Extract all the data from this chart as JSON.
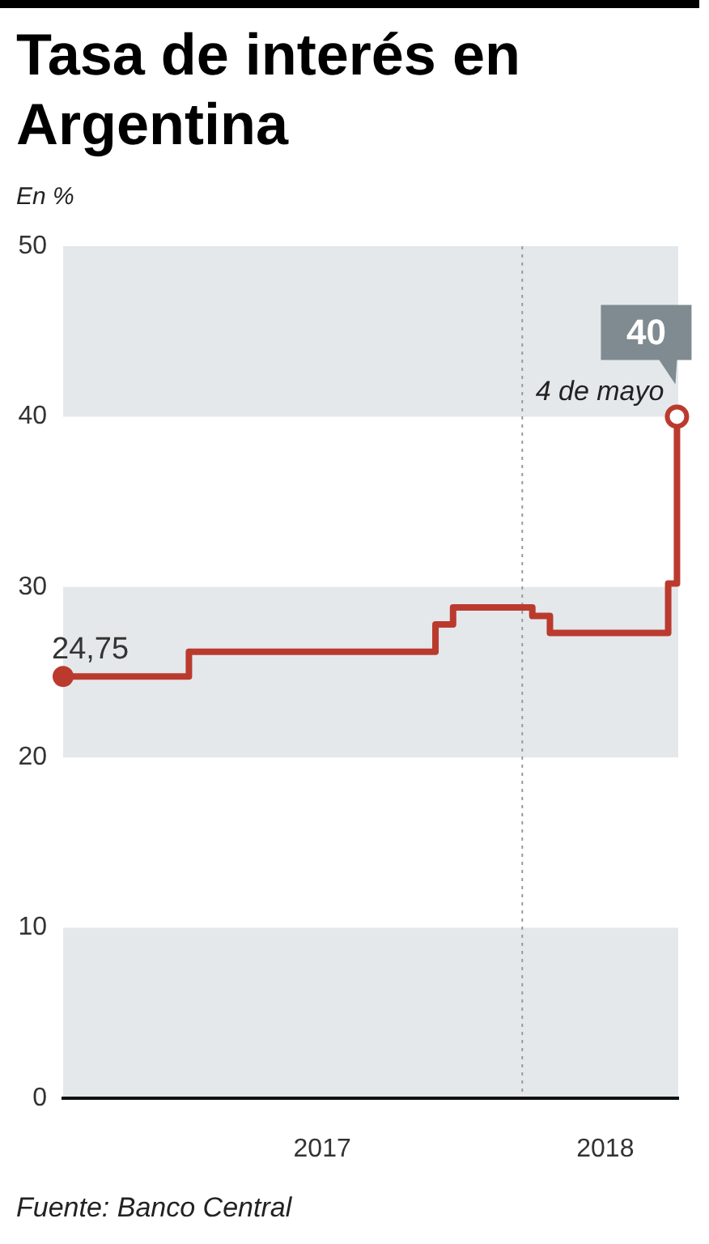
{
  "chart_data": {
    "type": "step",
    "title": "Tasa de interés en Argentina",
    "ylabel": "En %",
    "x": [
      "2017-01-01",
      "2017-04-11",
      "2017-10-24",
      "2017-11-07",
      "2018-01-09",
      "2018-01-23",
      "2018-04-27",
      "2018-05-04"
    ],
    "values": [
      24.75,
      26.2,
      27.8,
      28.8,
      28.3,
      27.3,
      30.2,
      40
    ],
    "color": "#bb3a2e",
    "value_labels": [
      "24,75",
      null,
      null,
      null,
      null,
      null,
      null,
      "40"
    ],
    "xlim": [
      "2017-01-01",
      "2018-05-05"
    ],
    "xticks": [
      {
        "value": "2017-07-26",
        "label": "2017"
      },
      {
        "value": "2018-03-08",
        "label": "2018"
      }
    ],
    "ylim": [
      0,
      50
    ],
    "yticks": [
      0,
      10,
      20,
      30,
      40,
      50
    ],
    "bands": [
      {
        "axis": "y",
        "from": 0,
        "to": 10,
        "color": "#e4e8eb"
      },
      {
        "axis": "y",
        "from": 20,
        "to": 30,
        "color": "#e4e8eb"
      },
      {
        "axis": "y",
        "from": 40,
        "to": 50,
        "color": "#e4e8eb"
      }
    ],
    "ref_lines": [
      {
        "axis": "x",
        "value": "2018-01-01",
        "color": "#9a9a9a",
        "line_style": "dotted"
      }
    ],
    "annotations": [
      {
        "text": "4 de mayo",
        "x": "2018-05-04",
        "y": 40
      },
      "Fuente: Banco Central"
    ],
    "grid": false,
    "line_style": "solid"
  }
}
